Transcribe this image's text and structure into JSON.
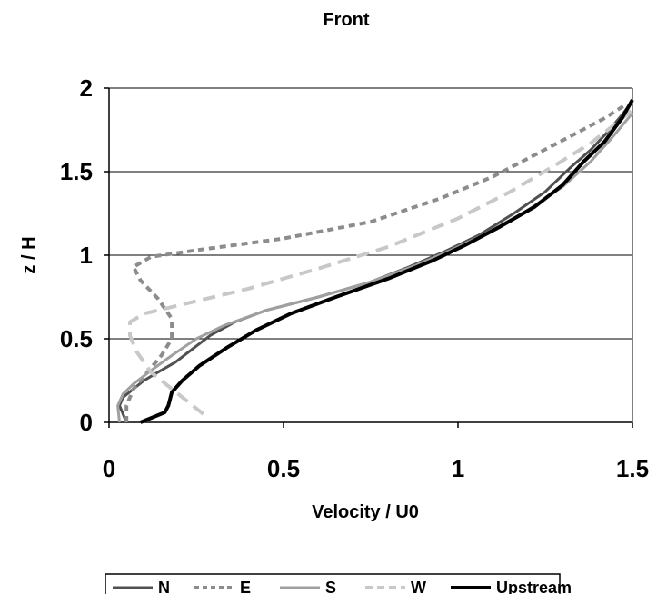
{
  "chart_data": {
    "type": "line",
    "title": "Front",
    "xlabel": "Velocity / U0",
    "ylabel": "z / H",
    "xlim": [
      0,
      1.5
    ],
    "ylim": [
      0,
      2
    ],
    "xticks": [
      "0",
      "0.5",
      "1",
      "1.5"
    ],
    "yticks": [
      "0",
      "0.5",
      "1",
      "1.5",
      "2"
    ],
    "grid": "horizontal",
    "legend_position": "bottom",
    "series": [
      {
        "name": "N",
        "color": "#505050",
        "style": "solid",
        "points": [
          [
            0.05,
            0
          ],
          [
            0.04,
            0.05
          ],
          [
            0.03,
            0.1
          ],
          [
            0.04,
            0.15
          ],
          [
            0.07,
            0.2
          ],
          [
            0.1,
            0.25
          ],
          [
            0.14,
            0.3
          ],
          [
            0.19,
            0.36
          ],
          [
            0.24,
            0.44
          ],
          [
            0.29,
            0.52
          ],
          [
            0.36,
            0.6
          ],
          [
            0.45,
            0.67
          ],
          [
            0.6,
            0.75
          ],
          [
            0.75,
            0.84
          ],
          [
            0.86,
            0.93
          ],
          [
            0.96,
            1.02
          ],
          [
            1.06,
            1.12
          ],
          [
            1.16,
            1.25
          ],
          [
            1.25,
            1.38
          ],
          [
            1.32,
            1.52
          ],
          [
            1.38,
            1.63
          ],
          [
            1.43,
            1.74
          ],
          [
            1.47,
            1.84
          ],
          [
            1.5,
            1.92
          ]
        ]
      },
      {
        "name": "E",
        "color": "#8c8c8c",
        "style": "short-dash",
        "points": [
          [
            0.05,
            0
          ],
          [
            0.05,
            0.1
          ],
          [
            0.07,
            0.2
          ],
          [
            0.11,
            0.3
          ],
          [
            0.15,
            0.4
          ],
          [
            0.18,
            0.5
          ],
          [
            0.18,
            0.62
          ],
          [
            0.14,
            0.74
          ],
          [
            0.09,
            0.85
          ],
          [
            0.07,
            0.93
          ],
          [
            0.12,
            0.99
          ],
          [
            0.25,
            1.03
          ],
          [
            0.5,
            1.1
          ],
          [
            0.75,
            1.2
          ],
          [
            0.95,
            1.34
          ],
          [
            1.1,
            1.47
          ],
          [
            1.22,
            1.6
          ],
          [
            1.33,
            1.72
          ],
          [
            1.42,
            1.82
          ],
          [
            1.48,
            1.9
          ]
        ]
      },
      {
        "name": "S",
        "color": "#a0a0a0",
        "style": "solid",
        "points": [
          [
            0.03,
            0
          ],
          [
            0.025,
            0.1
          ],
          [
            0.04,
            0.17
          ],
          [
            0.07,
            0.23
          ],
          [
            0.12,
            0.31
          ],
          [
            0.18,
            0.4
          ],
          [
            0.25,
            0.5
          ],
          [
            0.33,
            0.58
          ],
          [
            0.45,
            0.67
          ],
          [
            0.6,
            0.75
          ],
          [
            0.75,
            0.84
          ],
          [
            0.88,
            0.94
          ],
          [
            0.98,
            1.03
          ],
          [
            1.08,
            1.13
          ],
          [
            1.2,
            1.27
          ],
          [
            1.3,
            1.41
          ],
          [
            1.38,
            1.56
          ],
          [
            1.44,
            1.7
          ],
          [
            1.48,
            1.8
          ],
          [
            1.5,
            1.85
          ]
        ]
      },
      {
        "name": "W",
        "color": "#c8c8c8",
        "style": "long-dash",
        "points": [
          [
            0.27,
            0.05
          ],
          [
            0.24,
            0.1
          ],
          [
            0.18,
            0.2
          ],
          [
            0.12,
            0.3
          ],
          [
            0.08,
            0.42
          ],
          [
            0.06,
            0.52
          ],
          [
            0.06,
            0.6
          ],
          [
            0.1,
            0.65
          ],
          [
            0.2,
            0.7
          ],
          [
            0.4,
            0.8
          ],
          [
            0.6,
            0.92
          ],
          [
            0.8,
            1.05
          ],
          [
            1.0,
            1.22
          ],
          [
            1.15,
            1.38
          ],
          [
            1.28,
            1.54
          ],
          [
            1.38,
            1.67
          ],
          [
            1.46,
            1.8
          ],
          [
            1.5,
            1.87
          ]
        ]
      },
      {
        "name": "Upstream",
        "color": "#000000",
        "style": "solid-thick",
        "points": [
          [
            0.09,
            0
          ],
          [
            0.16,
            0.06
          ],
          [
            0.17,
            0.1
          ],
          [
            0.18,
            0.18
          ],
          [
            0.21,
            0.25
          ],
          [
            0.26,
            0.34
          ],
          [
            0.34,
            0.45
          ],
          [
            0.42,
            0.55
          ],
          [
            0.52,
            0.65
          ],
          [
            0.65,
            0.75
          ],
          [
            0.8,
            0.86
          ],
          [
            0.93,
            0.97
          ],
          [
            1.02,
            1.06
          ],
          [
            1.12,
            1.17
          ],
          [
            1.22,
            1.29
          ],
          [
            1.3,
            1.42
          ],
          [
            1.36,
            1.56
          ],
          [
            1.42,
            1.68
          ],
          [
            1.47,
            1.82
          ],
          [
            1.5,
            1.93
          ]
        ]
      }
    ]
  }
}
